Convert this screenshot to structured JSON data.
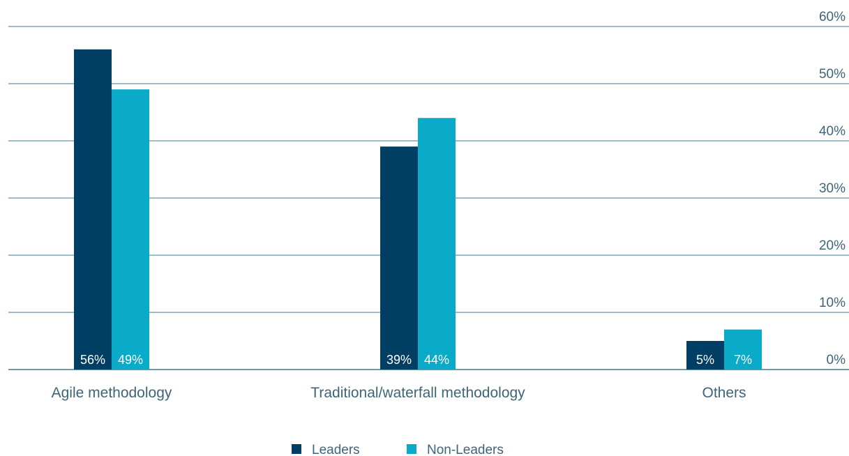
{
  "chart_data": {
    "type": "bar",
    "categories": [
      "Agile methodology",
      "Traditional/waterfall methodology",
      "Others"
    ],
    "series": [
      {
        "name": "Leaders",
        "color": "#003f63",
        "values": [
          56,
          39,
          5
        ],
        "labels": [
          "56%",
          "39%",
          "5%"
        ]
      },
      {
        "name": "Non-Leaders",
        "color": "#0aabc9",
        "values": [
          49,
          44,
          7
        ],
        "labels": [
          "49%",
          "44%",
          "7%"
        ]
      }
    ],
    "yticks": [
      "0%",
      "10%",
      "20%",
      "30%",
      "40%",
      "50%",
      "60%"
    ],
    "ylim": [
      0,
      60
    ],
    "y_axis_side": "right",
    "gridline_color": "#3d7a91",
    "grid": true,
    "legend_position": "bottom-center"
  }
}
